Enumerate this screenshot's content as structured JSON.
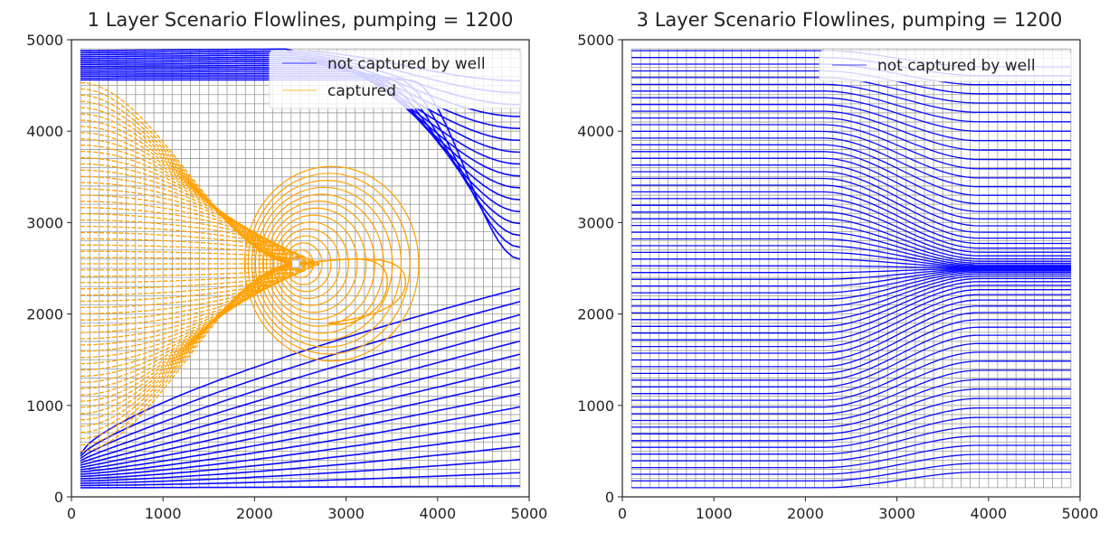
{
  "colors": {
    "grid": "#9a9a9a",
    "not_captured": "#0a0aff",
    "captured": "#ffa100",
    "axis": "#333333"
  },
  "chart_data": [
    {
      "type": "line",
      "title": "1 Layer Scenario Flowlines, pumping = 1200",
      "xlim": [
        0,
        5000
      ],
      "ylim": [
        0,
        5000
      ],
      "x_ticks": [
        0,
        1000,
        2000,
        3000,
        4000,
        5000
      ],
      "y_ticks": [
        0,
        1000,
        2000,
        3000,
        4000,
        5000
      ],
      "grid_spacing": 100,
      "grid_extent": [
        100,
        4900
      ],
      "well": {
        "x": 2450,
        "y": 2550
      },
      "legend": [
        "not captured by well",
        "captured"
      ],
      "series": [
        {
          "name": "not captured by well",
          "color": "#0a0aff",
          "start_x": 100,
          "end_x": 4900,
          "start_y_upper": [
            4560,
            4880
          ],
          "start_y_lower": [
            100,
            470
          ],
          "end_y_upper": [
            2600,
            4550
          ],
          "end_y_lower": [
            120,
            2280
          ]
        },
        {
          "name": "captured",
          "color": "#ffa100",
          "start_x": 100,
          "start_y_range": [
            500,
            4530
          ],
          "sink": [
            2450,
            2550
          ]
        }
      ]
    },
    {
      "type": "line",
      "title": "3 Layer Scenario Flowlines, pumping = 1200",
      "xlim": [
        0,
        5000
      ],
      "ylim": [
        0,
        5000
      ],
      "x_ticks": [
        0,
        1000,
        2000,
        3000,
        4000,
        5000
      ],
      "y_ticks": [
        0,
        1000,
        2000,
        3000,
        4000,
        5000
      ],
      "grid_spacing": 100,
      "grid_extent": [
        100,
        4900
      ],
      "legend": [
        "not captured by well"
      ],
      "series": [
        {
          "name": "not captured by well",
          "color": "#0a0aff",
          "start_x": 100,
          "end_x": 4900,
          "start_y_range": [
            100,
            4880
          ],
          "convergence_y": 2500,
          "convergence_start_x": 2200
        }
      ]
    }
  ]
}
